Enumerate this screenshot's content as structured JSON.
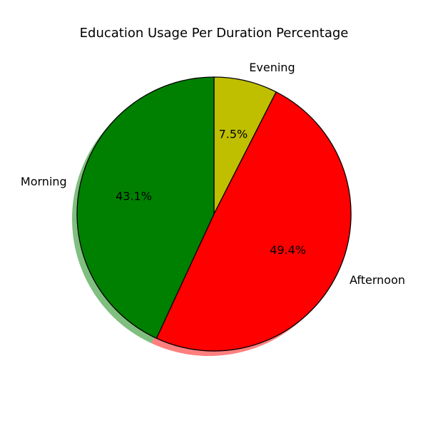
{
  "chart_data": {
    "type": "pie",
    "title": "Education Usage Per Duration Percentage",
    "slices": [
      {
        "label": "Evening",
        "value": 7.5,
        "pct_label": "7.5%",
        "color": "#bfbf00"
      },
      {
        "label": "Afternoon",
        "value": 49.4,
        "pct_label": "49.4%",
        "color": "#ff0000"
      },
      {
        "label": "Morning",
        "value": 43.1,
        "pct_label": "43.1%",
        "color": "#008000"
      }
    ],
    "start_angle_deg": 90,
    "direction": "clockwise",
    "shadow": true,
    "edge_color": "#000000",
    "legend": "none"
  }
}
